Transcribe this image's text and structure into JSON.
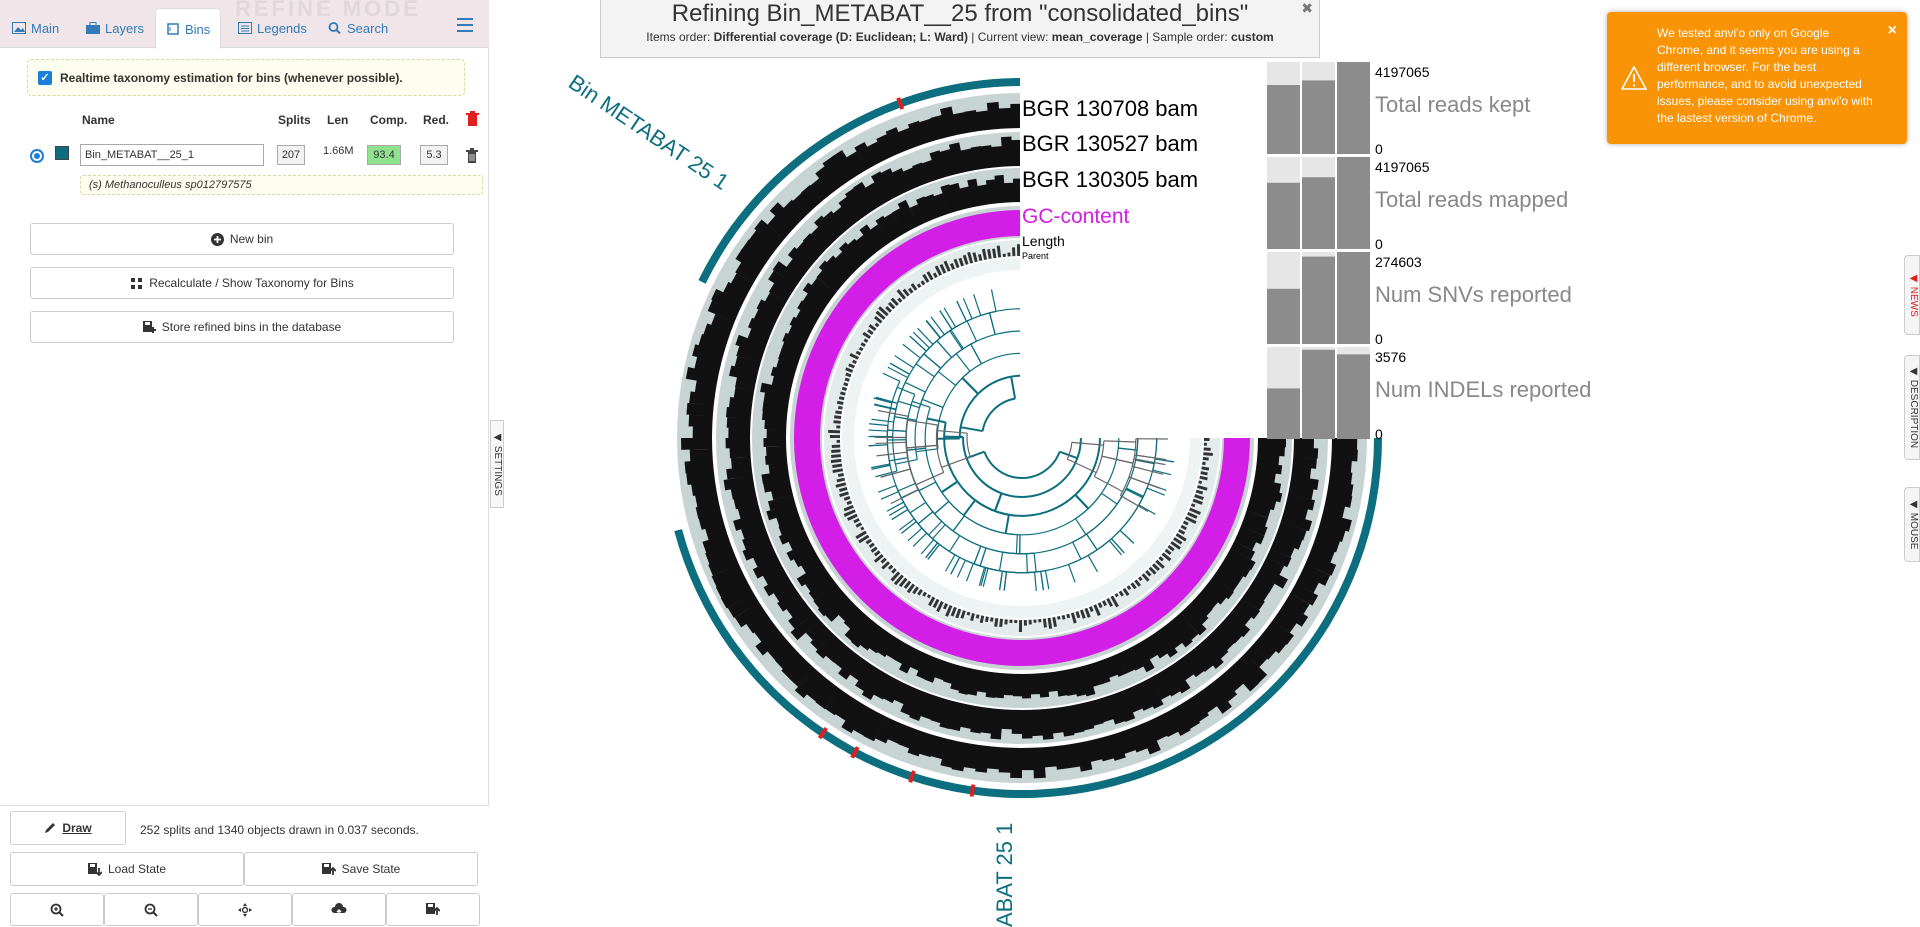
{
  "sidebar": {
    "watermark": "REFINE MODE",
    "tabs": [
      {
        "label": "Main"
      },
      {
        "label": "Layers"
      },
      {
        "label": "Bins"
      },
      {
        "label": "Legends"
      },
      {
        "label": "Search"
      }
    ],
    "realtime_label": "Realtime taxonomy estimation for bins (whenever possible).",
    "columns": {
      "name": "Name",
      "splits": "Splits",
      "len": "Len",
      "comp": "Comp.",
      "red": "Red."
    },
    "bin": {
      "name": "Bin_METABAT__25_1",
      "splits": "207",
      "len": "1.66M",
      "comp": "93.4",
      "red": "5.3",
      "color": "#0d6e7f"
    },
    "taxonomy": "(s) Methanoculleus sp012797575",
    "buttons": {
      "new_bin": "New bin",
      "recalc": "Recalculate / Show Taxonomy for Bins",
      "store": "Store refined bins in the database"
    },
    "settings_handle": "SETTINGS"
  },
  "bottom": {
    "draw": "Draw",
    "status": "252 splits and 1340 objects drawn in 0.037 seconds.",
    "load_state": "Load State",
    "save_state": "Save State"
  },
  "title": {
    "main": "Refining Bin_METABAT__25 from \"consolidated_bins\"",
    "items_order_label": "Items order:",
    "items_order_value": "Differential coverage (D: Euclidean; L: Ward)",
    "current_view_label": "Current view:",
    "current_view_value": "mean_coverage",
    "sample_order_label": "Sample order:",
    "sample_order_value": "custom"
  },
  "warning": {
    "text": "We tested anvi'o only on Google Chrome, and it seems you are using a different browser. For the best performance, and to avoid unexpected issues, please consider using anvi'o with the lastest version of Chrome."
  },
  "right_tabs": {
    "news": "NEWS",
    "description": "DESCRIPTION",
    "mouse": "MOUSE"
  },
  "layers": {
    "sample1": "BGR 130708 bam",
    "sample2": "BGR 130527 bam",
    "sample3": "BGR 130305 bam",
    "gc": "GC-content",
    "length": "Length",
    "parent": "Parent"
  },
  "bin_labels": {
    "top": "Bin METABAT 25 1",
    "bottom": "ABAT 25 1"
  },
  "bar_panels": [
    {
      "label": "Total reads kept",
      "max": "4197065",
      "min": "0",
      "values": [
        0.75,
        0.8,
        1.0
      ]
    },
    {
      "label": "Total reads mapped",
      "max": "4197065",
      "min": "0",
      "values": [
        0.72,
        0.78,
        1.0
      ]
    },
    {
      "label": "Num SNVs reported",
      "max": "274603",
      "min": "0",
      "values": [
        0.6,
        0.95,
        1.0
      ]
    },
    {
      "label": "Num INDELs reported",
      "max": "3576",
      "min": "0",
      "values": [
        0.55,
        0.97,
        0.92
      ]
    }
  ],
  "colors": {
    "bin": "#0d6e7f",
    "gc": "#d21ee6",
    "ring": "#111111",
    "ring_bg": "#c8d3d3",
    "accent_link": "#337ab7",
    "warning": "#f89406"
  }
}
